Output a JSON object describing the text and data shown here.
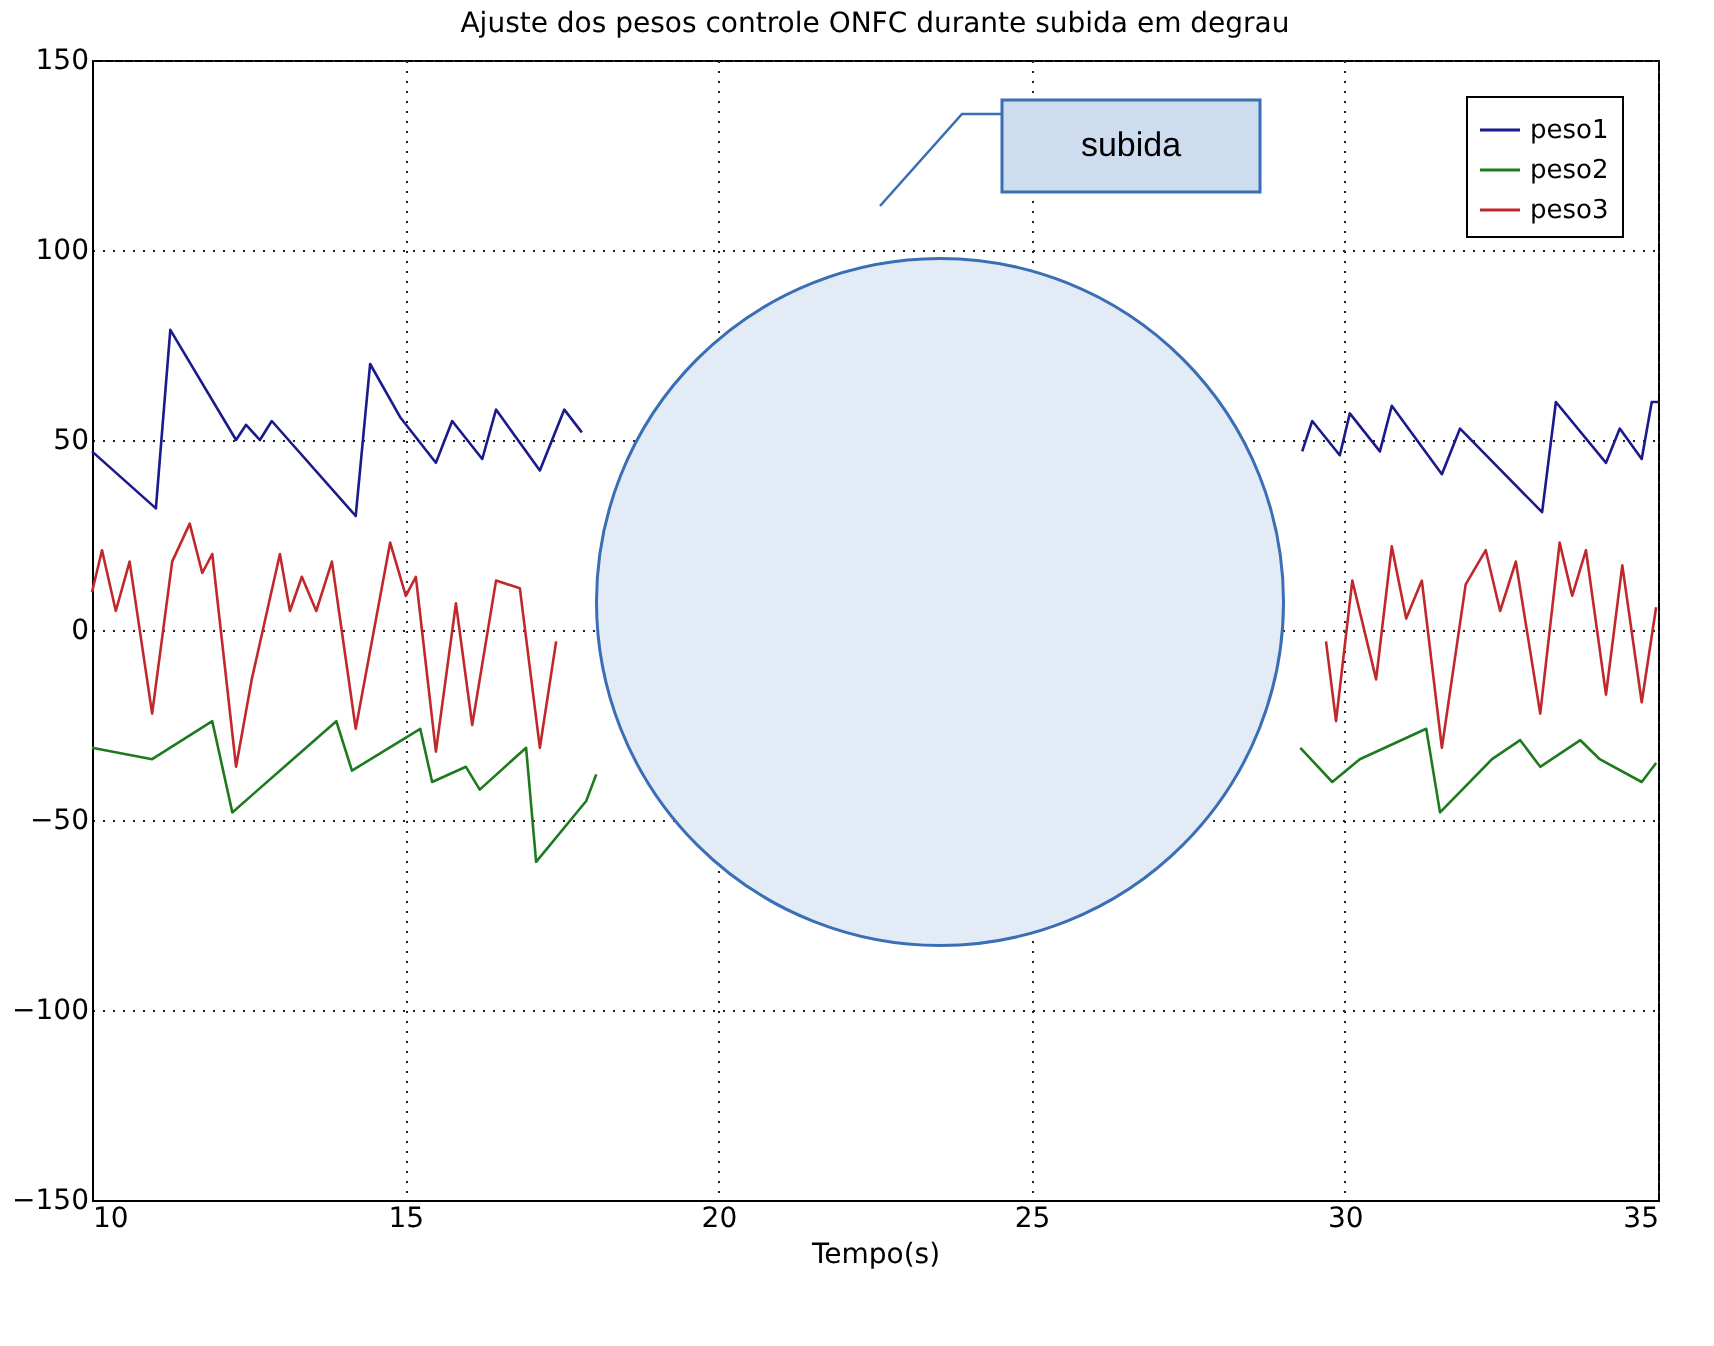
{
  "chart_data": {
    "type": "line",
    "title": "Ajuste dos pesos controle ONFC durante subida em degrau",
    "xlabel": "Tempo(s)",
    "xlim": [
      10,
      35
    ],
    "xticks": [
      10,
      15,
      20,
      25,
      30,
      35
    ],
    "ylim": [
      -150,
      150
    ],
    "yticks": [
      -150,
      -100,
      -50,
      0,
      50,
      100,
      150
    ],
    "grid": true,
    "legend": "top right",
    "line_style": "solid",
    "annotations": [
      "subida"
    ],
    "series": [
      {
        "name": "peso1",
        "color": "#1a1a8c",
        "x": [
          10,
          11.02,
          11.25,
          12.3,
          12.46,
          12.68,
          12.87,
          14.21,
          14.44,
          14.92,
          15.49,
          15.75,
          16.23,
          16.45,
          17.15,
          17.54,
          17.82,
          24,
          29.32,
          29.48,
          29.92,
          30.08,
          30.56,
          30.75,
          31.55,
          31.84,
          33.15,
          33.37,
          34.17,
          34.39,
          34.74,
          34.9,
          35
        ],
        "values": [
          47,
          32,
          79,
          50,
          54,
          50,
          55,
          30,
          70,
          56,
          44,
          55,
          45,
          58,
          42,
          58,
          52,
          null,
          47,
          55,
          46,
          57,
          47,
          59,
          41,
          53,
          31,
          60,
          44,
          53,
          45,
          60,
          60
        ]
      },
      {
        "name": "peso2",
        "color": "#1e7a1e",
        "x": [
          10,
          10.96,
          11.92,
          12.24,
          13.9,
          14.15,
          15.24,
          15.43,
          15.97,
          16.19,
          16.93,
          17.09,
          17.89,
          18.05,
          24,
          29.29,
          29.8,
          30.24,
          31.3,
          31.52,
          32.35,
          32.8,
          33.12,
          33.76,
          34.07,
          34.74,
          34.97
        ],
        "values": [
          -31,
          -34,
          -24,
          -48,
          -24,
          -37,
          -26,
          -40,
          -36,
          -42,
          -31,
          -61,
          -45,
          -38,
          null,
          -31,
          -40,
          -34,
          -26,
          -48,
          -34,
          -29,
          -36,
          -29,
          -34,
          -40,
          -35
        ]
      },
      {
        "name": "peso3",
        "color": "#c0282c",
        "x": [
          10,
          10.16,
          10.38,
          10.6,
          10.96,
          11.28,
          11.56,
          11.76,
          11.92,
          12.3,
          12.55,
          13.0,
          13.16,
          13.35,
          13.58,
          13.83,
          14.21,
          14.76,
          15.01,
          15.17,
          15.49,
          15.81,
          16.07,
          16.45,
          16.83,
          17.15,
          17.41,
          24,
          29.7,
          29.86,
          30.12,
          30.5,
          30.75,
          30.98,
          31.23,
          31.55,
          31.93,
          32.25,
          32.48,
          32.73,
          33.12,
          33.43,
          33.63,
          33.85,
          34.17,
          34.43,
          34.74,
          34.97
        ],
        "values": [
          10,
          21,
          5,
          18,
          -22,
          18,
          28,
          15,
          20,
          -36,
          -13,
          20,
          5,
          14,
          5,
          18,
          -26,
          23,
          9,
          14,
          -32,
          7,
          -25,
          13,
          11,
          -31,
          -3,
          null,
          -3,
          -24,
          13,
          -13,
          22,
          3,
          13,
          -31,
          12,
          21,
          5,
          18,
          -22,
          23,
          9,
          21,
          -17,
          17,
          -19,
          6
        ]
      }
    ]
  }
}
